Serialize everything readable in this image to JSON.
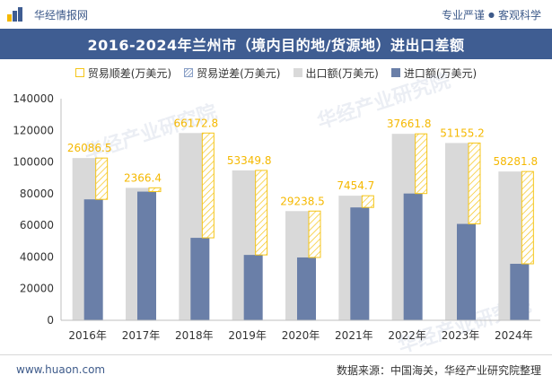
{
  "header": {
    "brand": "华经情报网",
    "tag_left": "专业严谨",
    "separator": "●",
    "tag_right": "客观科学"
  },
  "title": "2016-2024年兰州市（境内目的地/货源地）进出口差额",
  "legend": {
    "surplus": "贸易顺差(万美元)",
    "deficit": "贸易逆差(万美元)",
    "export": "出口额(万美元)",
    "import": "进口额(万美元)"
  },
  "footer": {
    "site": "www.huaon.com",
    "source": "数据来源：中国海关，华经产业研究院整理"
  },
  "watermark": "华经产业研究院",
  "colors": {
    "export": "#d9d9d9",
    "import": "#6a7fa8",
    "surplus_border": "#f5c518",
    "deficit_stripe": "#8aa0c6",
    "label": "#f5b800"
  },
  "chart_data": {
    "type": "bar",
    "categories": [
      "2016年",
      "2017年",
      "2018年",
      "2019年",
      "2020年",
      "2021年",
      "2022年",
      "2023年",
      "2024年"
    ],
    "series": [
      {
        "name": "出口额(万美元)",
        "values": [
          102500,
          83700,
          118300,
          94700,
          69000,
          78700,
          117800,
          112000,
          94000
        ]
      },
      {
        "name": "进口额(万美元)",
        "values": [
          76400,
          81300,
          52100,
          41300,
          39700,
          71300,
          80100,
          60900,
          35700
        ]
      }
    ],
    "balance_labels": [
      "26086.5",
      "2366.4",
      "66172.8",
      "53349.8",
      "29238.5",
      "7454.7",
      "37661.8",
      "51155.2",
      "58281.8"
    ],
    "balance_type": [
      "surplus",
      "surplus",
      "surplus",
      "surplus",
      "surplus",
      "surplus",
      "surplus",
      "surplus",
      "surplus"
    ],
    "ylim": [
      0,
      140000
    ],
    "yticks": [
      "0",
      "20000",
      "40000",
      "60000",
      "80000",
      "100000",
      "120000",
      "140000"
    ],
    "grid": false
  }
}
